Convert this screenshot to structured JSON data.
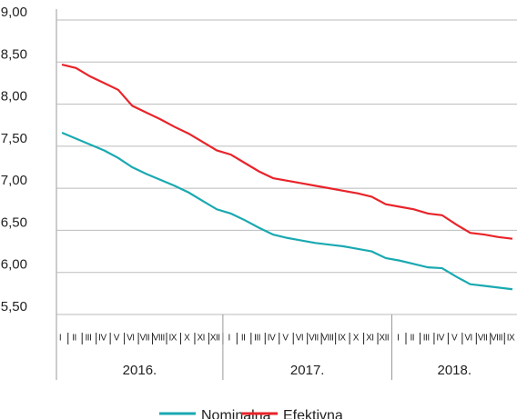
{
  "chart_data": {
    "type": "line",
    "categories": [
      "I",
      "II",
      "III",
      "IV",
      "V",
      "VI",
      "VII",
      "VIII",
      "IX",
      "X",
      "XI",
      "XII",
      "I",
      "II",
      "III",
      "IV",
      "V",
      "VI",
      "VII",
      "VIII",
      "IX",
      "X",
      "XI",
      "XII",
      "I",
      "II",
      "III",
      "IV",
      "V",
      "VI",
      "VII",
      "VIII",
      "IX"
    ],
    "x_groups": [
      "2016.",
      "2017.",
      "2018."
    ],
    "series": [
      {
        "name": "Nominalna",
        "color": "#1aa9b1",
        "values": [
          7.66,
          7.59,
          7.52,
          7.45,
          7.36,
          7.25,
          7.17,
          7.1,
          7.03,
          6.95,
          6.85,
          6.75,
          6.7,
          6.62,
          6.53,
          6.45,
          6.41,
          6.38,
          6.35,
          6.33,
          6.31,
          6.28,
          6.25,
          6.17,
          6.14,
          6.1,
          6.06,
          6.05,
          5.95,
          5.86,
          5.84,
          5.82,
          5.8
        ]
      },
      {
        "name": "Efektivna",
        "color": "#e8242a",
        "values": [
          8.47,
          8.43,
          8.33,
          8.25,
          8.17,
          7.98,
          7.9,
          7.82,
          7.73,
          7.65,
          7.55,
          7.45,
          7.4,
          7.3,
          7.2,
          7.12,
          7.09,
          7.06,
          7.03,
          7.0,
          6.97,
          6.94,
          6.9,
          6.81,
          6.78,
          6.75,
          6.7,
          6.68,
          6.57,
          6.47,
          6.45,
          6.42,
          6.4
        ]
      }
    ],
    "ylim": [
      5.5,
      9
    ],
    "yticks": [
      {
        "value": 5.5,
        "label": "5,50"
      },
      {
        "value": 6,
        "label": "6,00"
      },
      {
        "value": 6.5,
        "label": "6,50"
      },
      {
        "value": 7,
        "label": "7,00"
      },
      {
        "value": 7.5,
        "label": "7,50"
      },
      {
        "value": 8,
        "label": "8,00"
      },
      {
        "value": 8.5,
        "label": "8,50"
      },
      {
        "value": 9,
        "label": "9,00"
      }
    ],
    "grid": true
  }
}
